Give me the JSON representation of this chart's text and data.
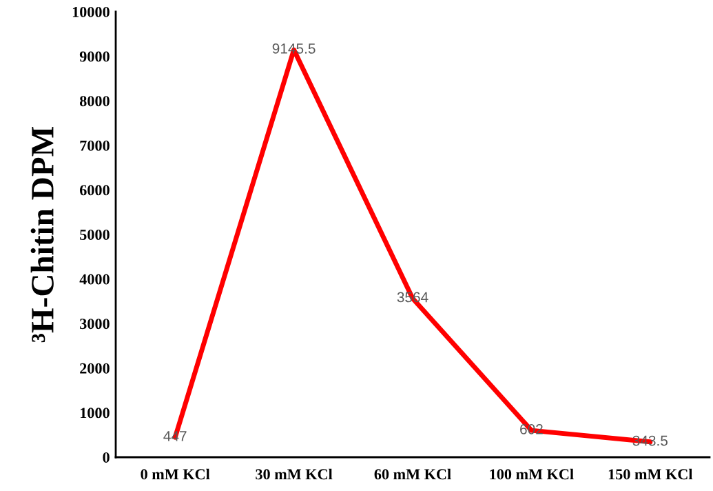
{
  "chart_data": {
    "type": "line",
    "ylabel": "³H-Chitin DPM",
    "categories": [
      "0 mM KCl",
      "30 mM KCl",
      "60 mM KCl",
      "100 mM KCl",
      "150 mM KCl"
    ],
    "series": [
      {
        "color": "#ff0000",
        "values": [
          447,
          9145.5,
          3564,
          602,
          343.5
        ]
      }
    ],
    "ylim": [
      0,
      10000
    ],
    "yticks": [
      0,
      1000,
      2000,
      3000,
      4000,
      5000,
      6000,
      7000,
      8000,
      9000,
      10000
    ],
    "data_labels": true,
    "grid": false,
    "legend": false,
    "marker": "none",
    "line_style": "solid"
  }
}
